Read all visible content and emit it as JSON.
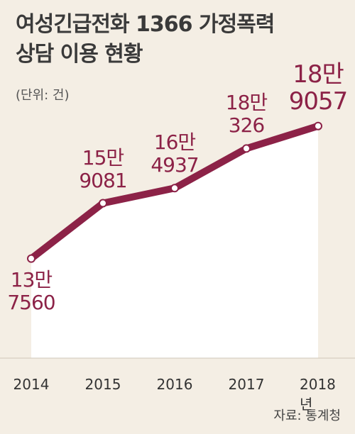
{
  "chart_data": {
    "type": "line",
    "title": "여성긴급전화 1366 가정폭력\n상담 이용 현황",
    "subtitle": "(단위: 건)",
    "source": "자료: 통계청",
    "categories": [
      "2014",
      "2015",
      "2016",
      "2017",
      "2018년"
    ],
    "values": [
      137560,
      159081,
      164937,
      180326,
      189057
    ],
    "value_labels": [
      "13만\n7560",
      "15만\n9081",
      "16만\n4937",
      "18만\n326",
      "18만\n9057"
    ],
    "color": "#8c2247",
    "ylim": [
      100000,
      200000
    ]
  }
}
